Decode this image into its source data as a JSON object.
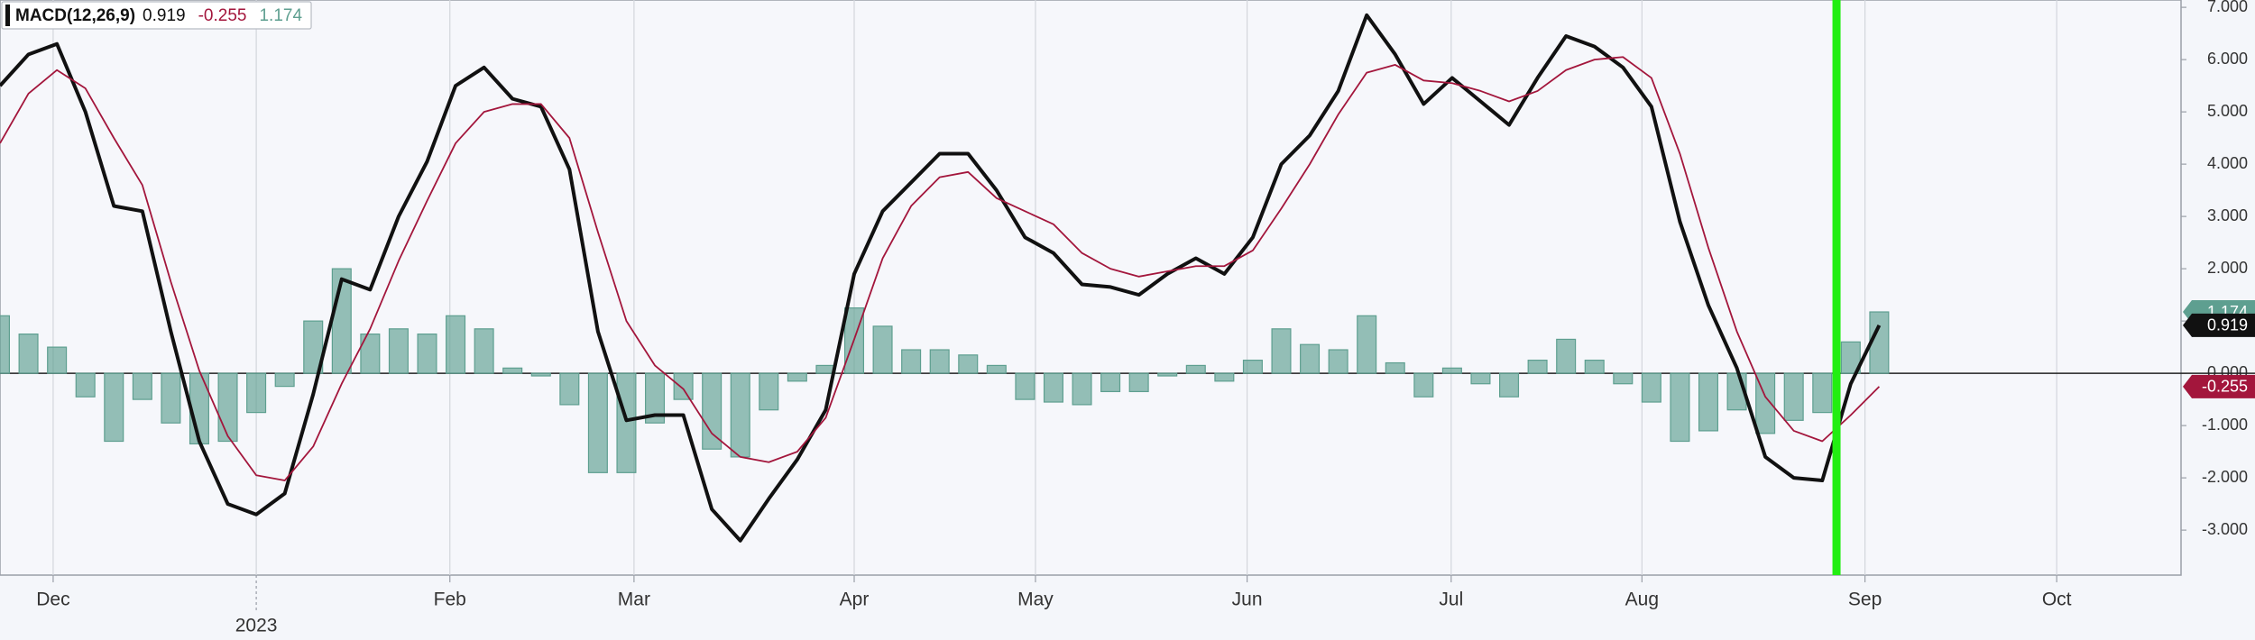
{
  "chart_data": {
    "type": "macd",
    "title": "MACD(12,26,9)",
    "x": [
      0,
      3,
      6,
      9,
      12,
      15,
      18,
      21,
      24,
      27,
      30,
      33,
      36,
      39,
      42,
      45,
      48,
      51,
      54,
      57,
      60,
      63,
      66,
      69,
      72,
      75,
      78,
      81,
      84,
      87,
      90,
      93,
      96,
      99,
      102,
      105,
      108,
      111,
      114,
      117,
      120,
      123,
      126,
      129,
      132,
      135,
      138,
      141,
      144,
      147,
      150,
      153,
      156,
      159,
      162,
      165,
      168,
      171,
      174,
      177,
      180,
      183,
      186,
      189,
      192,
      195,
      198
    ],
    "series": [
      {
        "type": "line",
        "color": "#111111",
        "values": [
          5.5,
          6.1,
          6.3,
          5.0,
          3.2,
          3.1,
          0.8,
          -1.3,
          -2.5,
          -2.7,
          -2.3,
          -0.4,
          1.8,
          1.6,
          3.0,
          4.05,
          5.5,
          5.85,
          5.25,
          5.1,
          3.9,
          0.8,
          -0.9,
          -0.8,
          -0.8,
          -2.6,
          -3.2,
          -2.4,
          -1.65,
          -0.7,
          1.9,
          3.1,
          3.65,
          4.2,
          4.2,
          3.5,
          2.6,
          2.3,
          1.7,
          1.65,
          1.5,
          1.9,
          2.2,
          1.9,
          2.6,
          4.0,
          4.55,
          5.4,
          6.85,
          6.1,
          5.15,
          5.65,
          5.2,
          4.75,
          5.65,
          6.45,
          6.25,
          5.85,
          5.1,
          2.9,
          1.3,
          0.1,
          -1.6,
          -2.0,
          -2.05,
          -0.2,
          0.919
        ]
      },
      {
        "type": "line",
        "color": "#a3163c",
        "values": [
          4.4,
          5.35,
          5.8,
          5.45,
          4.5,
          3.6,
          1.75,
          0.05,
          -1.2,
          -1.95,
          -2.05,
          -1.4,
          -0.2,
          0.85,
          2.15,
          3.3,
          4.4,
          5.0,
          5.15,
          5.15,
          4.5,
          2.7,
          1.0,
          0.15,
          -0.3,
          -1.15,
          -1.6,
          -1.7,
          -1.5,
          -0.85,
          0.65,
          2.2,
          3.2,
          3.75,
          3.85,
          3.35,
          3.1,
          2.85,
          2.3,
          2.0,
          1.85,
          1.95,
          2.05,
          2.05,
          2.35,
          3.15,
          4.0,
          4.95,
          5.75,
          5.9,
          5.6,
          5.55,
          5.4,
          5.2,
          5.4,
          5.8,
          6.0,
          6.05,
          5.65,
          4.2,
          2.4,
          0.8,
          -0.45,
          -1.1,
          -1.3,
          -0.8,
          -0.255
        ]
      },
      {
        "type": "bar",
        "color": "#5e9f90",
        "values": [
          1.1,
          0.75,
          0.5,
          -0.45,
          -1.3,
          -0.5,
          -0.95,
          -1.35,
          -1.3,
          -0.75,
          -0.25,
          1.0,
          2.0,
          0.75,
          0.85,
          0.75,
          1.1,
          0.85,
          0.1,
          -0.05,
          -0.6,
          -1.9,
          -1.9,
          -0.95,
          -0.5,
          -1.45,
          -1.6,
          -0.7,
          -0.15,
          0.15,
          1.25,
          0.9,
          0.45,
          0.45,
          0.35,
          0.15,
          -0.5,
          -0.55,
          -0.6,
          -0.35,
          -0.35,
          -0.05,
          0.15,
          -0.15,
          0.25,
          0.85,
          0.55,
          0.45,
          1.1,
          0.2,
          -0.45,
          0.1,
          -0.2,
          -0.45,
          0.25,
          0.65,
          0.25,
          -0.2,
          -0.55,
          -1.3,
          -1.1,
          -0.7,
          -1.15,
          -0.9,
          -0.75,
          0.6,
          1.174
        ]
      }
    ],
    "xlim": [
      0,
      229.8
    ],
    "ylim": [
      -3.86,
      7.14
    ],
    "xticks": [
      {
        "value": 5.6,
        "label": "Dec"
      },
      {
        "value": 47.4,
        "label": "Feb"
      },
      {
        "value": 66.8,
        "label": "Mar"
      },
      {
        "value": 90,
        "label": "Apr"
      },
      {
        "value": 109.1,
        "label": "May"
      },
      {
        "value": 131.4,
        "label": "Jun"
      },
      {
        "value": 152.9,
        "label": "Jul"
      },
      {
        "value": 173,
        "label": "Aug"
      },
      {
        "value": 196.5,
        "label": "Sep"
      },
      {
        "value": 216.7,
        "label": "Oct"
      }
    ],
    "year_ticks": [
      {
        "value": 27,
        "label": "2023"
      }
    ],
    "yticks": [
      {
        "value": 7,
        "label": "7.000"
      },
      {
        "value": 6,
        "label": "6.000"
      },
      {
        "value": 5,
        "label": "5.000"
      },
      {
        "value": 4,
        "label": "4.000"
      },
      {
        "value": 3,
        "label": "3.000"
      },
      {
        "value": 2,
        "label": "2.000"
      },
      {
        "value": 1,
        "label": "1.000"
      },
      {
        "value": 0,
        "label": "0.000"
      },
      {
        "value": -1,
        "label": "-1.000"
      },
      {
        "value": -2,
        "label": "-2.000"
      },
      {
        "value": -3,
        "label": "-3.000"
      }
    ],
    "grid": true,
    "highlight_x": 193.5,
    "highlight_color": "#22ee11"
  }
}
